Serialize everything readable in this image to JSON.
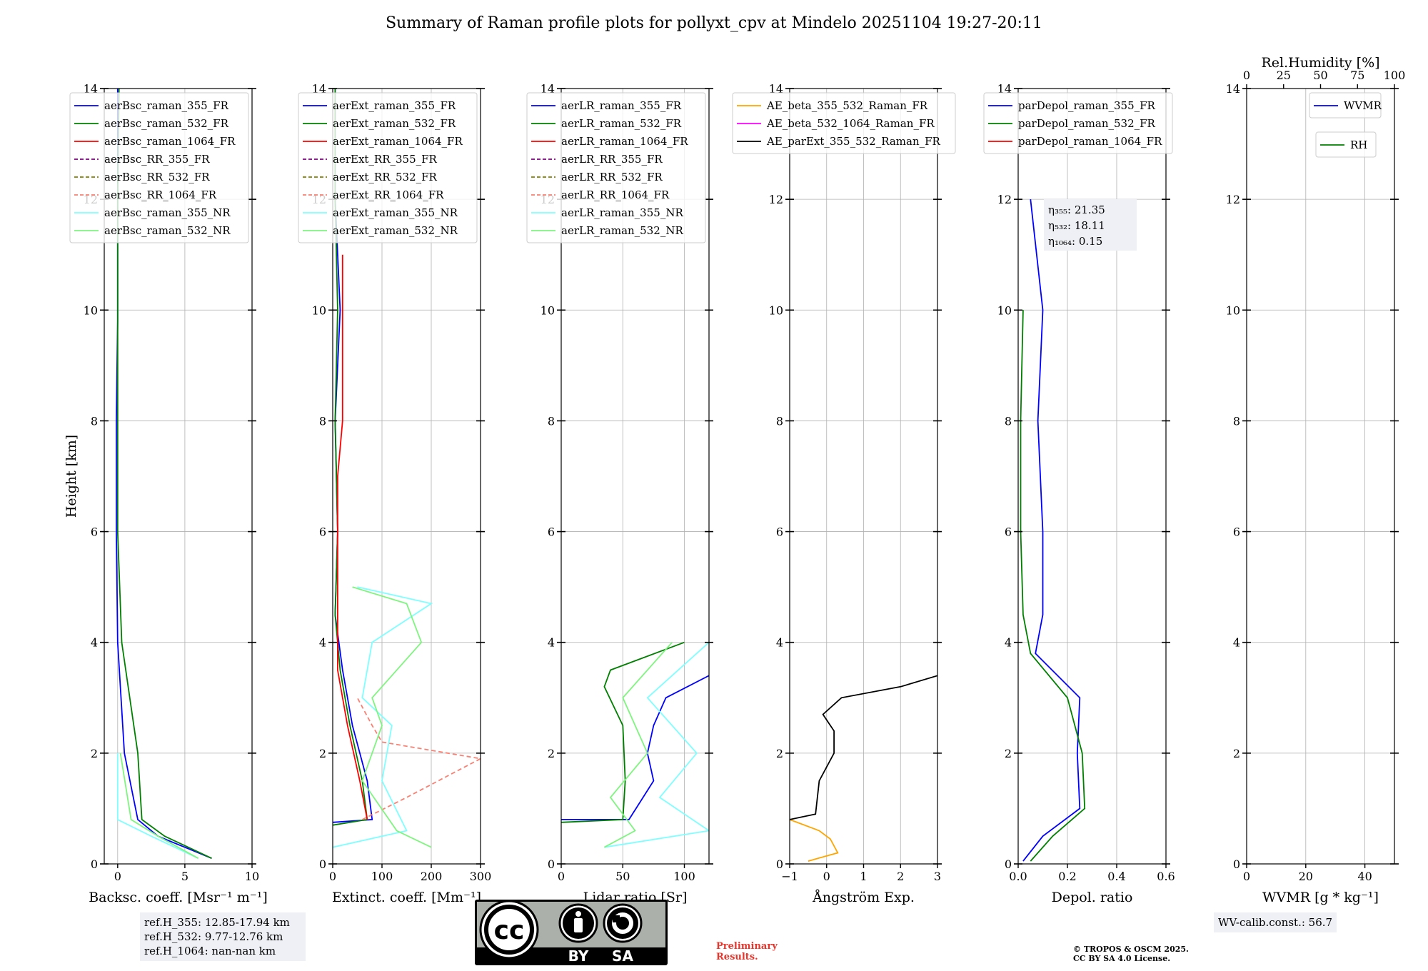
{
  "title": "Summary of Raman profile plots for pollyxt_cpv at Mindelo 20251104 19:27-20:11",
  "y_axis_label": "Height [km]",
  "colors": {
    "raman_355_FR": "#0000ff",
    "raman_532_FR": "#008000",
    "raman_1064_FR": "#ff0000",
    "RR_355_FR": "#800080",
    "RR_532_FR": "#808000",
    "RR_1064_FR": "#fa8072",
    "raman_355_NR": "#7fffff",
    "raman_532_NR": "#7ff57f",
    "AE_beta_355_532": "#ffa500",
    "AE_beta_532_1064": "#ff00ff",
    "AE_parExt_355_532": "#000000"
  },
  "chart_data": [
    {
      "id": "backscatter",
      "type": "line",
      "xlabel": "Backsc. coeff. [Msr⁻¹ m⁻¹]",
      "xlim": [
        -1,
        10
      ],
      "ylim": [
        0,
        14
      ],
      "xticks": [
        0,
        5,
        10
      ],
      "tick_labels": [
        "0",
        "5",
        "10"
      ],
      "yticks": [
        0,
        2,
        4,
        6,
        8,
        10,
        12,
        14
      ],
      "legend": [
        "aerBsc_raman_355_FR",
        "aerBsc_raman_532_FR",
        "aerBsc_raman_1064_FR",
        "aerBsc_RR_355_FR",
        "aerBsc_RR_532_FR",
        "aerBsc_RR_1064_FR",
        "aerBsc_raman_355_NR",
        "aerBsc_raman_532_NR"
      ],
      "series": [
        {
          "name": "aerBsc_raman_355_FR",
          "x": [
            7.0,
            3.0,
            1.5,
            0.5,
            0.0,
            -0.1,
            -0.1,
            0.0,
            0.0,
            0.0
          ],
          "y": [
            0.1,
            0.5,
            0.8,
            2.0,
            4.0,
            6.0,
            8.0,
            9.8,
            12.0,
            14.0
          ]
        },
        {
          "name": "aerBsc_raman_532_FR",
          "x": [
            7.0,
            3.5,
            1.8,
            1.5,
            0.3,
            0.0,
            0.0,
            0.0,
            0.0,
            0.1
          ],
          "y": [
            0.1,
            0.5,
            0.8,
            2.0,
            4.0,
            6.0,
            8.0,
            10.0,
            12.0,
            14.0
          ]
        },
        {
          "name": "aerBsc_raman_355_NR",
          "x": [
            6.0,
            2.5,
            0.0,
            0.0
          ],
          "y": [
            0.1,
            0.5,
            0.8,
            2.0
          ]
        },
        {
          "name": "aerBsc_raman_532_NR",
          "x": [
            6.0,
            3.0,
            1.0,
            0.2
          ],
          "y": [
            0.1,
            0.5,
            0.8,
            2.0
          ]
        }
      ]
    },
    {
      "id": "extinction",
      "type": "line",
      "xlabel": "Extinct. coeff. [Mm⁻¹]",
      "xlim": [
        0,
        300
      ],
      "ylim": [
        0,
        14
      ],
      "xticks": [
        0,
        100,
        200,
        300
      ],
      "tick_labels": [
        "0",
        "100",
        "200",
        "300"
      ],
      "yticks": [
        0,
        2,
        4,
        6,
        8,
        10,
        12,
        14
      ],
      "legend": [
        "aerExt_raman_355_FR",
        "aerExt_raman_532_FR",
        "aerExt_raman_1064_FR",
        "aerExt_RR_355_FR",
        "aerExt_RR_532_FR",
        "aerExt_RR_1064_FR",
        "aerExt_raman_355_NR",
        "aerExt_raman_532_NR"
      ],
      "series": [
        {
          "name": "aerExt_raman_355_FR",
          "x": [
            0,
            80,
            70,
            40,
            20,
            5,
            10,
            5,
            15,
            5,
            5
          ],
          "y": [
            0.75,
            0.8,
            1.5,
            2.5,
            3.5,
            4.5,
            6,
            8,
            10,
            12,
            14
          ]
        },
        {
          "name": "aerExt_raman_532_FR",
          "x": [
            0,
            70,
            60,
            35,
            15,
            5,
            10,
            5,
            10,
            5,
            5
          ],
          "y": [
            0.7,
            0.8,
            1.5,
            2.5,
            3.5,
            4.5,
            6,
            8,
            10,
            12,
            14
          ]
        },
        {
          "name": "aerExt_raman_1064_FR",
          "x": [
            70,
            55,
            30,
            10,
            10,
            10,
            20,
            20,
            20
          ],
          "y": [
            0.8,
            1.5,
            2.5,
            3.5,
            5,
            7,
            8,
            10,
            11
          ]
        },
        {
          "name": "aerExt_RR_1064_FR",
          "x": [
            60,
            150,
            300,
            100,
            80,
            50
          ],
          "y": [
            0.8,
            1.2,
            1.9,
            2.2,
            2.5,
            3.0
          ]
        },
        {
          "name": "aerExt_raman_355_NR",
          "x": [
            0,
            150,
            100,
            120,
            60,
            80,
            200,
            50
          ],
          "y": [
            0.3,
            0.6,
            1.5,
            2.5,
            3.0,
            4.0,
            4.7,
            5.0
          ]
        },
        {
          "name": "aerExt_raman_532_NR",
          "x": [
            200,
            130,
            60,
            100,
            80,
            180,
            150,
            40
          ],
          "y": [
            0.3,
            0.6,
            1.5,
            2.5,
            3.0,
            4.0,
            4.7,
            5.0
          ]
        }
      ]
    },
    {
      "id": "lidar_ratio",
      "type": "line",
      "xlabel": "Lidar ratio [Sr]",
      "xlim": [
        0,
        120
      ],
      "ylim": [
        0,
        14
      ],
      "xticks": [
        0,
        50,
        100
      ],
      "tick_labels": [
        "0",
        "50",
        "100"
      ],
      "yticks": [
        0,
        2,
        4,
        6,
        8,
        10,
        12,
        14
      ],
      "legend": [
        "aerLR_raman_355_FR",
        "aerLR_raman_532_FR",
        "aerLR_raman_1064_FR",
        "aerLR_RR_355_FR",
        "aerLR_RR_532_FR",
        "aerLR_RR_1064_FR",
        "aerLR_raman_355_NR",
        "aerLR_raman_532_NR"
      ],
      "series": [
        {
          "name": "aerLR_raman_355_FR",
          "x": [
            0,
            55,
            75,
            70,
            75,
            85,
            120
          ],
          "y": [
            0.8,
            0.8,
            1.5,
            2.0,
            2.5,
            3.0,
            3.4
          ]
        },
        {
          "name": "aerLR_raman_532_FR",
          "x": [
            0,
            50,
            52,
            50,
            35,
            40,
            100
          ],
          "y": [
            0.75,
            0.8,
            1.5,
            2.5,
            3.2,
            3.5,
            4.0
          ]
        },
        {
          "name": "aerLR_raman_355_NR",
          "x": [
            35,
            120,
            80,
            110,
            70,
            120
          ],
          "y": [
            0.3,
            0.6,
            1.2,
            2.0,
            3.0,
            4.0
          ]
        },
        {
          "name": "aerLR_raman_532_NR",
          "x": [
            35,
            60,
            40,
            70,
            50,
            90
          ],
          "y": [
            0.3,
            0.6,
            1.2,
            2.0,
            3.0,
            4.0
          ]
        }
      ]
    },
    {
      "id": "angstrom",
      "type": "line",
      "xlabel": "Ångström Exp.",
      "xlim": [
        -1,
        3
      ],
      "ylim": [
        0,
        14
      ],
      "xticks": [
        -1,
        0,
        1,
        2,
        3
      ],
      "tick_labels": [
        "−1",
        "0",
        "1",
        "2",
        "3"
      ],
      "yticks": [
        0,
        2,
        4,
        6,
        8,
        10,
        12,
        14
      ],
      "legend": [
        "AE_beta_355_532_Raman_FR",
        "AE_beta_532_1064_Raman_FR",
        "AE_parExt_355_532_Raman_FR"
      ],
      "series": [
        {
          "name": "AE_beta_355_532_Raman_FR",
          "x": [
            -0.5,
            0.3,
            0.1,
            -0.2,
            -1.0
          ],
          "y": [
            0.05,
            0.2,
            0.45,
            0.6,
            0.8
          ]
        },
        {
          "name": "AE_parExt_355_532_Raman_FR",
          "x": [
            -1.0,
            -0.3,
            -0.2,
            0.2,
            0.2,
            -0.1,
            0.4,
            2.0,
            3.0
          ],
          "y": [
            0.8,
            0.9,
            1.5,
            2.0,
            2.4,
            2.7,
            3.0,
            3.2,
            3.4
          ]
        }
      ]
    },
    {
      "id": "depol",
      "type": "line",
      "xlabel": "Depol. ratio",
      "xlim": [
        0,
        0.6
      ],
      "ylim": [
        0,
        14
      ],
      "xticks": [
        0.0,
        0.2,
        0.4,
        0.6
      ],
      "tick_labels": [
        "0.0",
        "0.2",
        "0.4",
        "0.6"
      ],
      "yticks": [
        0,
        2,
        4,
        6,
        8,
        10,
        12,
        14
      ],
      "legend": [
        "parDepol_raman_355_FR",
        "parDepol_raman_532_FR",
        "parDepol_raman_1064_FR"
      ],
      "annotations": [
        "η₃₅₅: 21.35",
        "η₅₃₂: 18.11",
        "η₁₀₆₄: 0.15"
      ],
      "series": [
        {
          "name": "parDepol_raman_355_FR",
          "x": [
            0.02,
            0.1,
            0.25,
            0.24,
            0.25,
            0.07,
            0.1,
            0.1,
            0.08,
            0.1,
            0.05
          ],
          "y": [
            0.05,
            0.5,
            1.0,
            2.0,
            3.0,
            3.8,
            4.5,
            6.0,
            8.0,
            10.0,
            12.0
          ]
        },
        {
          "name": "parDepol_raman_532_FR",
          "x": [
            0.05,
            0.14,
            0.27,
            0.26,
            0.2,
            0.05,
            0.02,
            0.01,
            0.01,
            0.02
          ],
          "y": [
            0.05,
            0.5,
            1.0,
            2.0,
            3.0,
            3.8,
            4.5,
            6.0,
            8.0,
            10.0
          ]
        }
      ]
    },
    {
      "id": "wvmr",
      "type": "line",
      "xlabel": "WVMR [g * kg⁻¹]",
      "top_label": "Rel.Humidity [%]",
      "xlim": [
        0,
        50
      ],
      "ylim": [
        0,
        14
      ],
      "xticks": [
        0,
        20,
        40
      ],
      "tick_labels": [
        "0",
        "20",
        "40"
      ],
      "top_xticks": [
        0,
        25,
        50,
        75,
        100
      ],
      "top_tick_labels": [
        "0",
        "25",
        "50",
        "75",
        "100"
      ],
      "yticks": [
        0,
        2,
        4,
        6,
        8,
        10,
        12,
        14
      ],
      "legend": [
        "WVMR"
      ],
      "legend2": [
        "RH"
      ],
      "series": []
    }
  ],
  "ref_info": [
    "ref.H_355: 12.85-17.94 km",
    "ref.H_532: 9.77-12.76 km",
    "ref.H_1064: nan-nan km"
  ],
  "wv_calib": "WV-calib.const.: 56.7",
  "preliminary": [
    "Preliminary",
    "Results."
  ],
  "copyright": [
    "© TROPOS & OSCM 2025.",
    "CC BY SA 4.0 License."
  ],
  "cc_badge": {
    "by": "BY",
    "sa": "SA",
    "cc": "cc"
  }
}
